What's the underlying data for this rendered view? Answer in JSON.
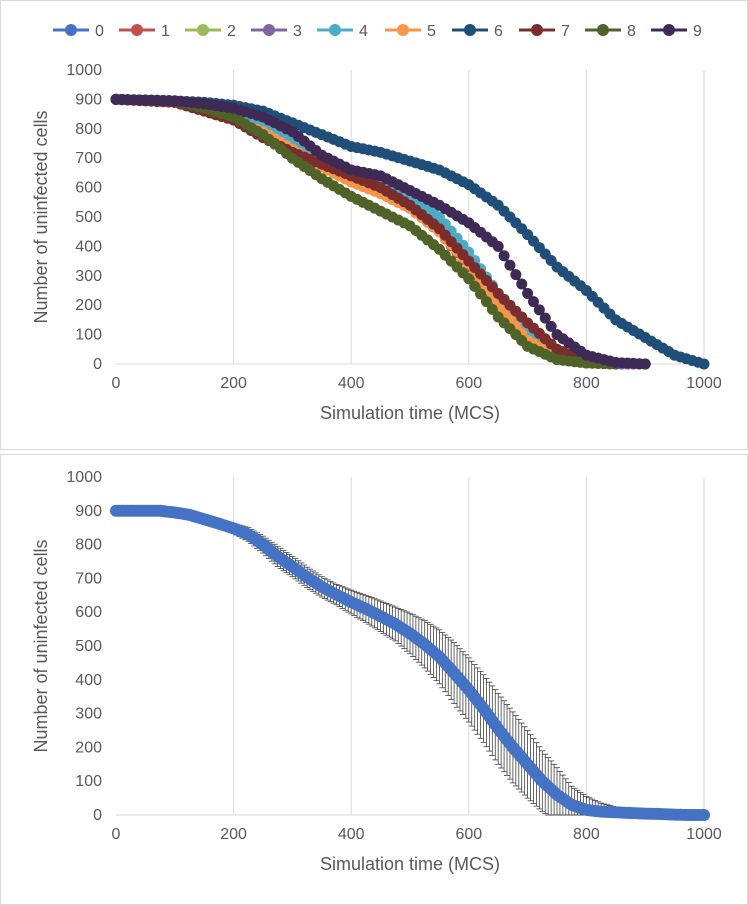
{
  "chart_data": [
    {
      "type": "scatter",
      "mode": "line-with-markers",
      "xlabel": "Simulation time (MCS)",
      "ylabel": "Number of uninfected cells",
      "xlim": [
        0,
        1000
      ],
      "ylim": [
        0,
        1000
      ],
      "xticks": [
        "0",
        "200",
        "400",
        "600",
        "800",
        "1000"
      ],
      "yticks": [
        "0",
        "100",
        "200",
        "300",
        "400",
        "500",
        "600",
        "700",
        "800",
        "900",
        "1000"
      ],
      "grid": "vertical",
      "legend_position": "top",
      "series": [
        {
          "name": "0",
          "color": "#4472C4",
          "x": [
            0,
            100,
            150,
            200,
            250,
            300,
            350,
            400,
            450,
            500,
            550,
            600,
            650,
            700,
            750,
            800,
            850,
            900
          ],
          "y": [
            900,
            895,
            880,
            860,
            810,
            740,
            680,
            630,
            600,
            550,
            470,
            340,
            200,
            80,
            20,
            5,
            0,
            0
          ]
        },
        {
          "name": "1",
          "color": "#C0504D",
          "x": [
            0,
            100,
            150,
            200,
            250,
            300,
            350,
            400,
            450,
            500,
            550,
            600,
            650,
            700,
            750,
            800,
            850
          ],
          "y": [
            900,
            895,
            870,
            840,
            790,
            730,
            670,
            620,
            580,
            530,
            450,
            330,
            190,
            70,
            20,
            5,
            0
          ]
        },
        {
          "name": "2",
          "color": "#9BBB59",
          "x": [
            0,
            100,
            150,
            200,
            250,
            300,
            350,
            400,
            450,
            500,
            550,
            600,
            650,
            700,
            750,
            800,
            850,
            880
          ],
          "y": [
            900,
            895,
            875,
            850,
            800,
            740,
            680,
            640,
            600,
            540,
            460,
            350,
            210,
            90,
            25,
            5,
            0,
            0
          ]
        },
        {
          "name": "3",
          "color": "#8064A2",
          "x": [
            0,
            100,
            150,
            200,
            250,
            300,
            350,
            400,
            450,
            500,
            550,
            600,
            650,
            700,
            750,
            800,
            850,
            900
          ],
          "y": [
            900,
            895,
            880,
            860,
            820,
            760,
            700,
            650,
            610,
            560,
            480,
            360,
            230,
            100,
            30,
            8,
            0,
            0
          ]
        },
        {
          "name": "4",
          "color": "#4BACC6",
          "x": [
            0,
            100,
            150,
            200,
            250,
            300,
            350,
            400,
            450,
            500,
            550,
            600,
            650,
            700,
            750,
            800,
            850
          ],
          "y": [
            900,
            895,
            880,
            860,
            820,
            760,
            710,
            660,
            620,
            570,
            500,
            380,
            240,
            110,
            40,
            10,
            0
          ]
        },
        {
          "name": "5",
          "color": "#F79646",
          "x": [
            0,
            100,
            150,
            200,
            250,
            300,
            350,
            400,
            450,
            500,
            550,
            600,
            650,
            700,
            750,
            800,
            850
          ],
          "y": [
            900,
            890,
            860,
            830,
            790,
            730,
            670,
            620,
            580,
            530,
            450,
            340,
            200,
            80,
            25,
            5,
            0
          ]
        },
        {
          "name": "6",
          "color": "#1F4E79",
          "x": [
            0,
            100,
            150,
            200,
            250,
            300,
            350,
            400,
            450,
            500,
            550,
            600,
            650,
            700,
            750,
            800,
            850,
            900,
            950,
            1000
          ],
          "y": [
            900,
            895,
            890,
            880,
            860,
            820,
            780,
            740,
            720,
            690,
            660,
            610,
            540,
            440,
            330,
            250,
            150,
            90,
            30,
            0
          ]
        },
        {
          "name": "7",
          "color": "#7B2C2C",
          "x": [
            0,
            100,
            150,
            200,
            250,
            300,
            350,
            400,
            450,
            500,
            550,
            600,
            650,
            700,
            750,
            800,
            850
          ],
          "y": [
            900,
            890,
            860,
            830,
            770,
            720,
            680,
            640,
            600,
            540,
            460,
            350,
            240,
            140,
            50,
            10,
            0
          ]
        },
        {
          "name": "8",
          "color": "#4F6228",
          "x": [
            0,
            100,
            150,
            200,
            250,
            300,
            350,
            400,
            450,
            500,
            550,
            600,
            650,
            700,
            750,
            800,
            850
          ],
          "y": [
            900,
            895,
            870,
            840,
            780,
            700,
            630,
            570,
            520,
            470,
            390,
            290,
            160,
            60,
            15,
            3,
            0
          ]
        },
        {
          "name": "9",
          "color": "#3F2A56",
          "x": [
            0,
            100,
            150,
            200,
            250,
            300,
            350,
            400,
            450,
            500,
            550,
            600,
            650,
            700,
            750,
            800,
            850,
            900
          ],
          "y": [
            900,
            895,
            885,
            870,
            840,
            790,
            710,
            660,
            640,
            590,
            540,
            480,
            400,
            240,
            100,
            30,
            5,
            0
          ]
        }
      ]
    },
    {
      "type": "scatter",
      "mode": "markers-with-error-bars",
      "xlabel": "Simulation time (MCS)",
      "ylabel": "Number of uninfected cells",
      "xlim": [
        0,
        1000
      ],
      "ylim": [
        0,
        1000
      ],
      "xticks": [
        "0",
        "200",
        "400",
        "600",
        "800",
        "1000"
      ],
      "yticks": [
        "0",
        "100",
        "200",
        "300",
        "400",
        "500",
        "600",
        "700",
        "800",
        "900",
        "1000"
      ],
      "grid": "vertical",
      "series": [
        {
          "color": "#4472C4",
          "error_color": "#404040",
          "x": [
            0,
            25,
            50,
            75,
            100,
            125,
            150,
            175,
            200,
            225,
            250,
            275,
            300,
            325,
            350,
            375,
            400,
            425,
            450,
            475,
            500,
            525,
            550,
            575,
            600,
            625,
            650,
            675,
            700,
            725,
            750,
            775,
            800,
            825,
            850,
            875,
            900,
            925,
            950,
            975,
            1000
          ],
          "y": [
            900,
            900,
            900,
            900,
            895,
            888,
            875,
            862,
            848,
            830,
            800,
            765,
            735,
            703,
            675,
            652,
            630,
            610,
            588,
            565,
            537,
            505,
            468,
            420,
            370,
            315,
            255,
            200,
            150,
            100,
            60,
            30,
            15,
            10,
            8,
            6,
            4,
            3,
            1,
            0,
            0
          ],
          "err": [
            0,
            0,
            0,
            0,
            3,
            5,
            8,
            10,
            15,
            20,
            25,
            30,
            30,
            30,
            30,
            30,
            35,
            40,
            45,
            50,
            60,
            70,
            80,
            90,
            95,
            100,
            105,
            105,
            100,
            90,
            80,
            55,
            40,
            25,
            15,
            10,
            8,
            5,
            3,
            0,
            0
          ]
        }
      ]
    }
  ]
}
